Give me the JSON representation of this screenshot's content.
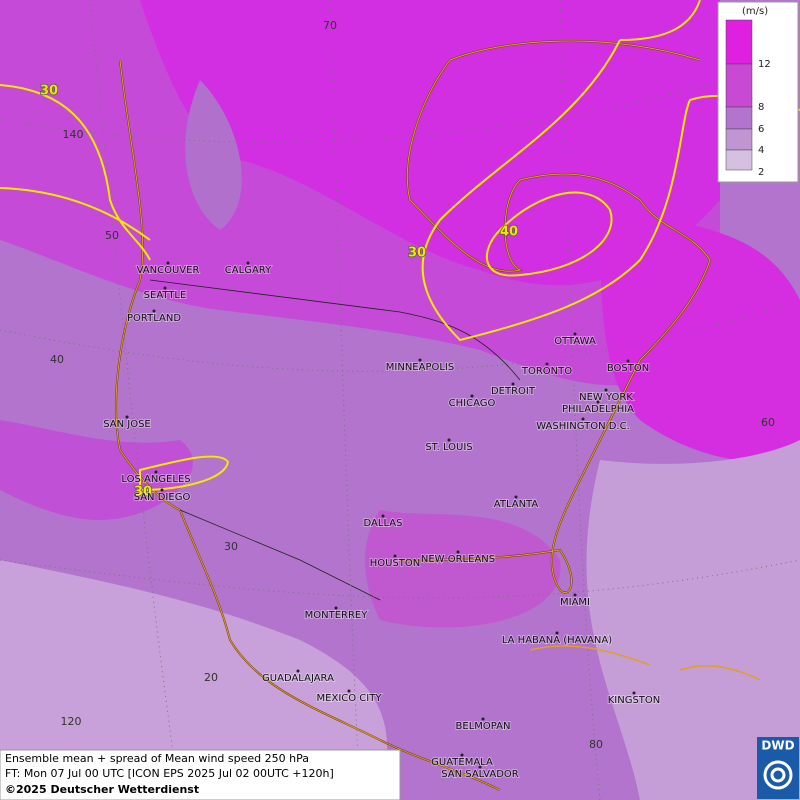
{
  "map": {
    "legend": {
      "unit": "(m/s)",
      "labels": [
        12,
        8,
        6,
        4,
        2
      ]
    },
    "grid_labels": [
      70,
      140,
      50,
      40,
      60,
      30,
      20,
      120,
      80
    ],
    "contour_labels": [
      30,
      40,
      30,
      30
    ],
    "cities": [
      "VANCOUVER",
      "CALGARY",
      "SEATTLE",
      "PORTLAND",
      "MINNEAPOLIS",
      "TORONTO",
      "OTTAWA",
      "BOSTON",
      "DETROIT",
      "NEW YORK",
      "PHILADELPHIA",
      "CHICAGO",
      "WASHINGTON D.C.",
      "SAN JOSE",
      "ST. LOUIS",
      "LOS ANGELES",
      "SAN DIEGO",
      "ATLANTA",
      "DALLAS",
      "HOUSTON",
      "NEW ORLEANS",
      "MIAMI",
      "MONTERREY",
      "LA HABANA (HAVANA)",
      "GUADALAJARA",
      "MEXICO CITY",
      "KINGSTON",
      "BELMOPAN",
      "GUATEMALA",
      "SAN SALVADOR"
    ],
    "footer": [
      "Ensemble mean + spread of Mean wind speed 250 hPa",
      "FT: Mon 07 Jul 00 UTC [ICON EPS 2025 Jul 02 00UTC +120h]",
      "©2025 Deutscher Wetterdienst"
    ],
    "logo": "DWD"
  }
}
